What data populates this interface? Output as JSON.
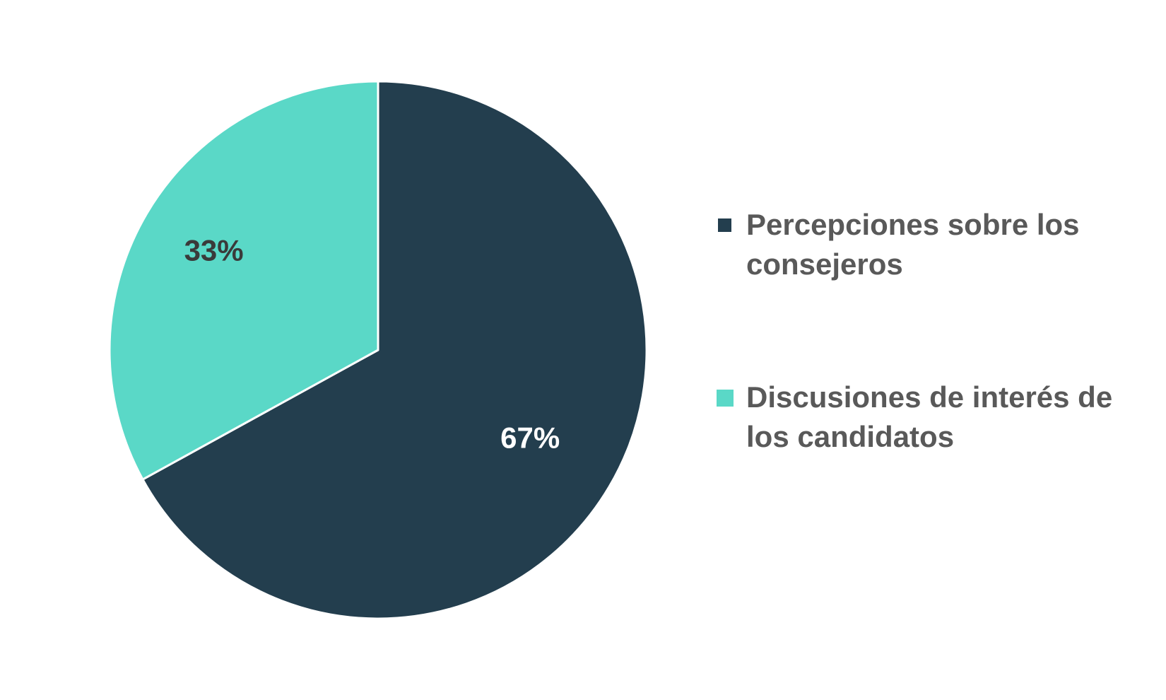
{
  "chart_data": {
    "type": "pie",
    "categories": [
      "Percepciones sobre los consejeros",
      "Discusiones de interés de los candidatos"
    ],
    "values": [
      67,
      33
    ],
    "value_labels": [
      "67%",
      "33%"
    ],
    "colors": [
      "#233E4E",
      "#5AD8C7"
    ],
    "label_colors": [
      "#ffffff",
      "#3A3A3A"
    ],
    "start": "12 o'clock",
    "direction": "clockwise",
    "legend_position": "right"
  },
  "legend": {
    "items": [
      {
        "label": "Percepciones sobre los consejeros",
        "color": "#233E4E"
      },
      {
        "label": "Discusiones de interés de los candidatos",
        "color": "#5AD8C7"
      }
    ]
  }
}
